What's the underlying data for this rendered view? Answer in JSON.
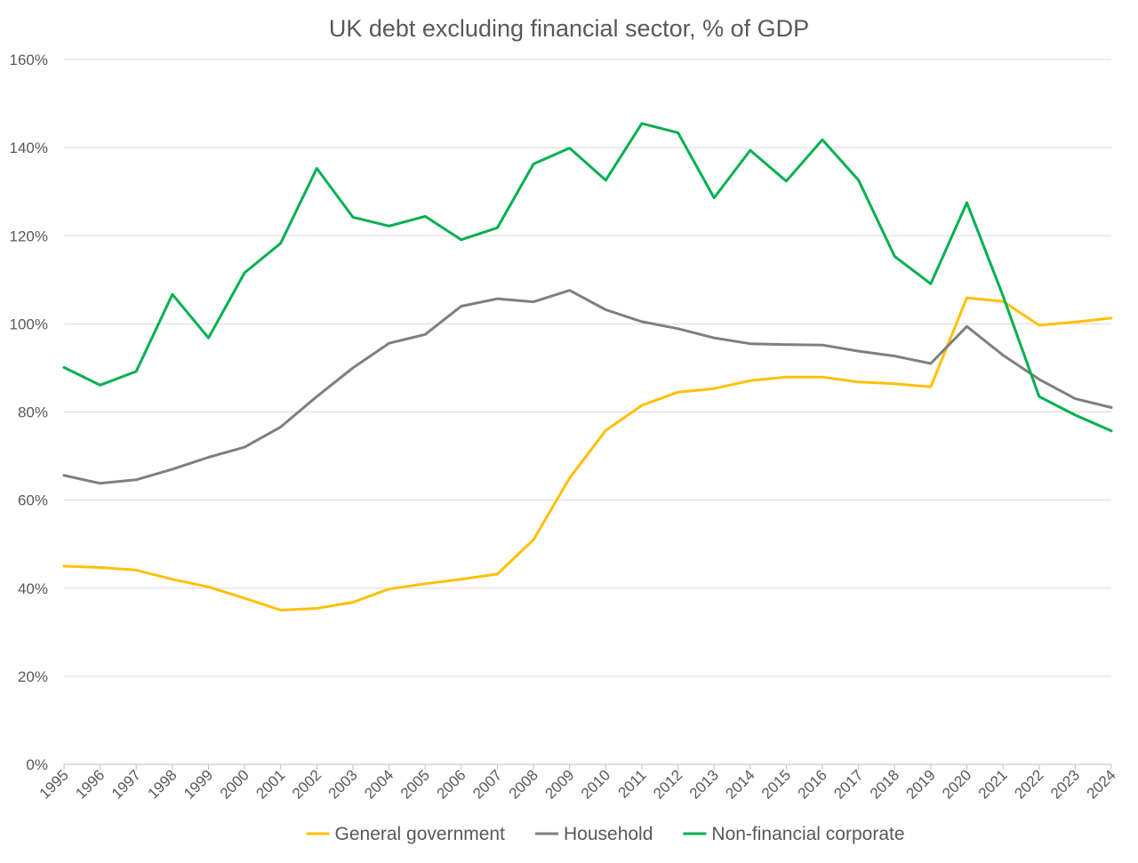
{
  "chart_data": {
    "type": "line",
    "title": "UK debt excluding financial sector, % of GDP",
    "xlabel": "",
    "ylabel": "",
    "x": [
      "1995",
      "1996",
      "1997",
      "1998",
      "1999",
      "2000",
      "2001",
      "2002",
      "2003",
      "2004",
      "2005",
      "2006",
      "2007",
      "2008",
      "2009",
      "2010",
      "2011",
      "2012",
      "2013",
      "2014",
      "2015",
      "2016",
      "2017",
      "2018",
      "2019",
      "2020",
      "2021",
      "2022",
      "2023",
      "2024"
    ],
    "ylim": [
      0,
      160
    ],
    "y_ticks": [
      0,
      20,
      40,
      60,
      80,
      100,
      120,
      140,
      160
    ],
    "y_tick_labels": [
      "0%",
      "20%",
      "40%",
      "60%",
      "80%",
      "100%",
      "120%",
      "140%",
      "160%"
    ],
    "grid": "horizontal",
    "legend_position": "bottom",
    "series": [
      {
        "name": "General government",
        "color": "#FFC000",
        "values": [
          45.0,
          44.7,
          44.1,
          42.0,
          40.3,
          37.7,
          35.0,
          35.4,
          36.8,
          39.8,
          41.0,
          42.0,
          43.2,
          51.0,
          65.0,
          75.8,
          81.5,
          84.5,
          85.3,
          87.1,
          87.9,
          87.9,
          86.8,
          86.4,
          85.7,
          105.9,
          105.1,
          99.7,
          100.4,
          101.3
        ]
      },
      {
        "name": "Household",
        "color": "#7F7F7F",
        "values": [
          65.6,
          63.8,
          64.6,
          67.0,
          69.7,
          72.0,
          76.6,
          83.5,
          90.0,
          95.6,
          97.6,
          104.0,
          105.7,
          105.0,
          107.6,
          103.2,
          100.5,
          98.9,
          96.8,
          95.5,
          95.3,
          95.2,
          93.8,
          92.7,
          91.0,
          99.4,
          92.9,
          87.4,
          83.0,
          81.0
        ]
      },
      {
        "name": "Non-financial corporate",
        "color": "#00B050",
        "values": [
          90.1,
          86.1,
          89.2,
          106.7,
          96.8,
          111.6,
          118.3,
          135.3,
          124.2,
          122.2,
          124.4,
          119.1,
          121.8,
          136.3,
          139.9,
          132.6,
          145.5,
          143.4,
          128.6,
          139.4,
          132.4,
          141.8,
          132.6,
          115.3,
          109.1,
          127.5,
          106.4,
          83.5,
          79.3,
          75.7
        ]
      }
    ]
  }
}
